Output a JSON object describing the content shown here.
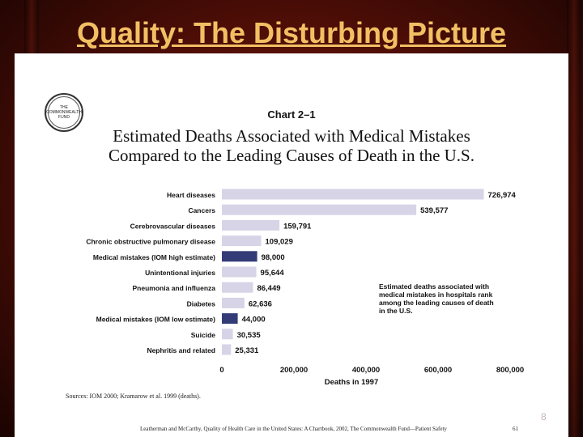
{
  "slide": {
    "title": "Quality: The Disturbing Picture",
    "slide_number": "8"
  },
  "logo": {
    "line1": "THE",
    "line2": "COMMONWEALTH",
    "line3": "FUND"
  },
  "chart_data": {
    "type": "bar",
    "orientation": "horizontal",
    "label": "Chart 2–1",
    "title_line1": "Estimated Deaths Associated with Medical Mistakes",
    "title_line2": "Compared to the Leading Causes of Death in the U.S.",
    "categories": [
      "Heart diseases",
      "Cancers",
      "Cerebrovascular diseases",
      "Chronic obstructive pulmonary disease",
      "Medical mistakes (IOM high estimate)",
      "Unintentional injuries",
      "Pneumonia and influenza",
      "Diabetes",
      "Medical mistakes (IOM low estimate)",
      "Suicide",
      "Nephritis and related"
    ],
    "values": [
      726974,
      539577,
      159791,
      109029,
      98000,
      95644,
      86449,
      62636,
      44000,
      30535,
      25331
    ],
    "value_labels": [
      "726,974",
      "539,577",
      "159,791",
      "109,029",
      "98,000",
      "95,644",
      "86,449",
      "62,636",
      "44,000",
      "30,535",
      "25,331"
    ],
    "highlight": [
      false,
      false,
      false,
      false,
      true,
      false,
      false,
      false,
      true,
      false,
      false
    ],
    "xlim": [
      0,
      800000
    ],
    "xticks": [
      0,
      200000,
      400000,
      600000,
      800000
    ],
    "xtick_labels": [
      "0",
      "200,000",
      "400,000",
      "600,000",
      "800,000"
    ],
    "xlabel": "Deaths in 1997",
    "annotation_lines": [
      "Estimated deaths associated with",
      "medical mistakes in hospitals rank",
      "among the leading causes of death",
      "in the U.S."
    ],
    "colors": {
      "bar": "#d6d4e6",
      "highlight": "#343c78",
      "text": "#111111"
    }
  },
  "source_text": "Sources: IOM 2000; Kramarow et al. 1999 (deaths).",
  "footer": {
    "citation": "Leatherman and McCarthy, Quality of Health Care in the United States: A Chartbook, 2002, The Commonwealth Fund—Patient Safety",
    "page": "61"
  }
}
